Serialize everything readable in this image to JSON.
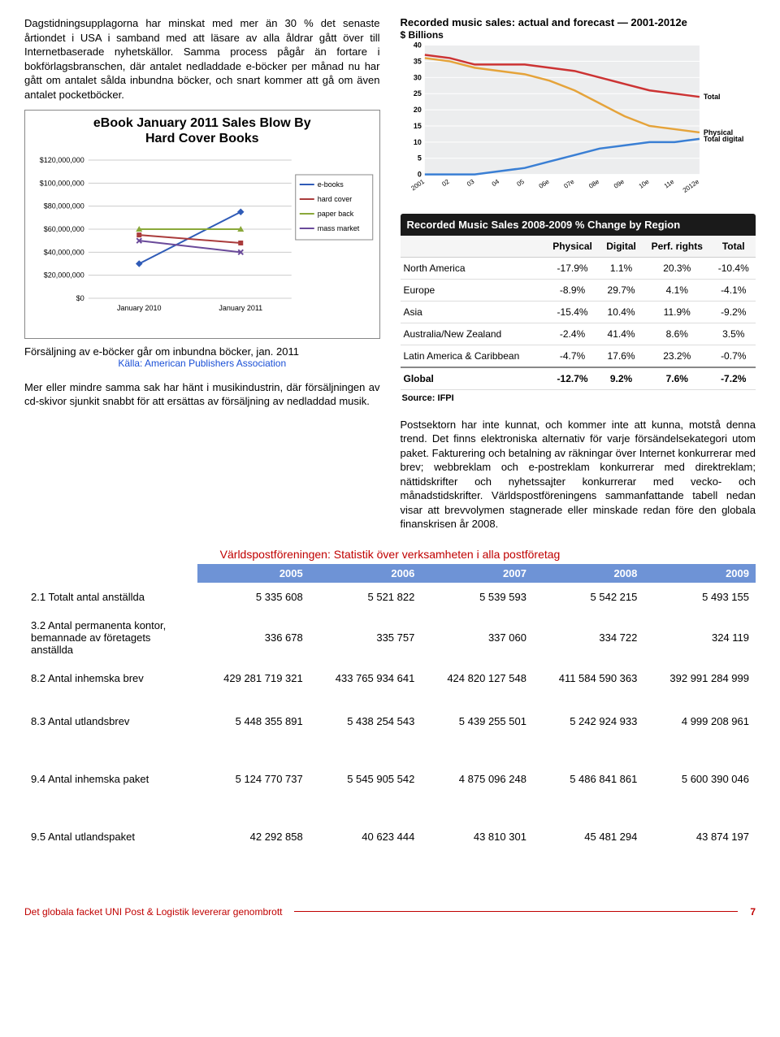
{
  "left": {
    "para1": "Dagstidningsupplagorna har minskat med mer än 30 % det senaste årtiondet i USA i samband med att läsare av alla åldrar gått över till Internetbaserade nyhetskällor. Samma process pågår än fortare i bokförlagsbranschen, där antalet nedladdade e-böcker per månad nu har gått om antalet sålda inbundna böcker, och snart kommer att gå om även antalet pocketböcker.",
    "ebook_chart": {
      "title_l1": "eBook January 2011 Sales Blow By",
      "title_l2": "Hard Cover Books",
      "y_ticks": [
        "$120,000,000",
        "$100,000,000",
        "$80,000,000",
        "$60,000,000",
        "$40,000,000",
        "$20,000,000",
        "$0"
      ],
      "x_ticks": [
        "January 2010",
        "January 2011"
      ],
      "legend": [
        "e-books",
        "hard cover",
        "paper back",
        "mass market"
      ],
      "legend_colors": [
        "#2f5bb7",
        "#aa3b3b",
        "#8aa83a",
        "#6a4a9a"
      ],
      "series_y0": [
        30,
        55,
        60,
        50
      ],
      "series_y1": [
        75,
        48,
        60,
        40
      ]
    },
    "caption_text": "Försäljning av e-böcker går om inbundna böcker, jan. 2011",
    "caption_src": "Källa: American Publishers Association",
    "para2": "Mer eller mindre samma sak har hänt i musikindustrin, där försäljningen av cd-skivor sjunkit snabbt för att ersättas av försäljning av nedladdad musik."
  },
  "right": {
    "music_chart": {
      "title": "Recorded music sales: actual and forecast — 2001-2012e",
      "subtitle": "$ Billions",
      "y_ticks": [
        40,
        35,
        30,
        25,
        20,
        15,
        10,
        5,
        0
      ],
      "x_ticks": [
        "2001",
        "02",
        "03",
        "04",
        "05",
        "06e",
        "07e",
        "08e",
        "09e",
        "10e",
        "11e",
        "2012e"
      ],
      "series": {
        "Total": {
          "color": "#c33",
          "vals": [
            37,
            36,
            34,
            34,
            34,
            33,
            32,
            30,
            28,
            26,
            25,
            24
          ]
        },
        "Physical": {
          "color": "#e5a33a",
          "vals": [
            36,
            35,
            33,
            32,
            31,
            29,
            26,
            22,
            18,
            15,
            14,
            13
          ]
        },
        "Total digital": {
          "color": "#3a7fd4",
          "vals": [
            0,
            0,
            0,
            1,
            2,
            4,
            6,
            8,
            9,
            10,
            10,
            11
          ]
        }
      }
    },
    "region_header": "Recorded Music Sales 2008-2009 % Change by Region",
    "region_cols": [
      "",
      "Physical",
      "Digital",
      "Perf. rights",
      "Total"
    ],
    "region_rows": [
      [
        "North America",
        "-17.9%",
        "1.1%",
        "20.3%",
        "-10.4%"
      ],
      [
        "Europe",
        "-8.9%",
        "29.7%",
        "4.1%",
        "-4.1%"
      ],
      [
        "Asia",
        "-15.4%",
        "10.4%",
        "11.9%",
        "-9.2%"
      ],
      [
        "Australia/New Zealand",
        "-2.4%",
        "41.4%",
        "8.6%",
        "3.5%"
      ],
      [
        "Latin America & Caribbean",
        "-4.7%",
        "17.6%",
        "23.2%",
        "-0.7%"
      ],
      [
        "Global",
        "-12.7%",
        "9.2%",
        "7.6%",
        "-7.2%"
      ]
    ],
    "region_src": "Source: IFPI",
    "para": "Postsektorn har inte kunnat, och kommer inte att kunna, motstå denna trend. Det finns elektroniska alternativ för varje försändelsekategori utom paket. Fakturering och betalning av räkningar över Internet konkurrerar med brev; webbreklam och e-postreklam konkurrerar med direktreklam; nättidskrifter och nyhetssajter konkurrerar med vecko- och månadstidskrifter. Världspostföreningens sammanfattande tabell nedan visar att brevvolymen stagnerade eller minskade redan före den globala finanskrisen år 2008."
  },
  "upu": {
    "title": "Världspostföreningen: Statistik över verksamheten i alla postföretag",
    "years": [
      "2005",
      "2006",
      "2007",
      "2008",
      "2009"
    ],
    "rows": [
      {
        "label": "2.1 Totalt antal anställda",
        "vals": [
          "5 335 608",
          "5 521 822",
          "5 539 593",
          "5 542 215",
          "5 493 155"
        ],
        "spaced": false
      },
      {
        "label": "3.2 Antal permanenta kontor, bemannade av företagets anställda",
        "vals": [
          "336 678",
          "335 757",
          "337 060",
          "334 722",
          "324 119"
        ],
        "spaced": false
      },
      {
        "label": "8.2 Antal inhemska brev",
        "vals": [
          "429 281 719 321",
          "433 765 934 641",
          "424 820 127 548",
          "411 584 590 363",
          "392 991 284 999"
        ],
        "spaced": false
      },
      {
        "label": "8.3 Antal utlandsbrev",
        "vals": [
          "5 448 355 891",
          "5 438 254 543",
          "5 439 255 501",
          "5 242 924 933",
          "4 999 208 961"
        ],
        "spaced": true
      },
      {
        "label": "9.4 Antal inhemska paket",
        "vals": [
          "5 124 770 737",
          "5 545 905 542",
          "4 875 096 248",
          "5 486 841 861",
          "5 600 390 046"
        ],
        "spaced": true
      },
      {
        "label": "9.5 Antal utlandspaket",
        "vals": [
          "42 292 858",
          "40 623 444",
          "43 810 301",
          "45 481 294",
          "43 874 197"
        ],
        "spaced": true
      }
    ]
  },
  "footer": {
    "left": "Det globala facket UNI Post & Logistik levererar genombrott",
    "page": "7"
  }
}
